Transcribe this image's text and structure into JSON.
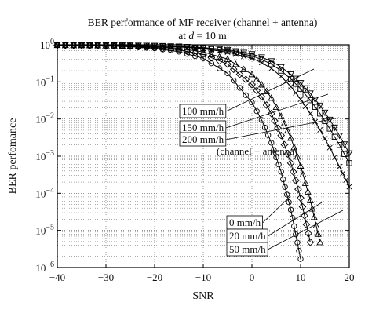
{
  "chart_data": {
    "type": "line",
    "title": "BER performance of MF receiver (channel + antenna)",
    "subtitle_prefix": "at ",
    "subtitle_var": "d",
    "subtitle_suffix": " = 10 m",
    "xlabel": "SNR",
    "ylabel": "BER perfomance",
    "xlim": [
      -40,
      20
    ],
    "ylim": [
      1e-06,
      1
    ],
    "yscale": "log",
    "grid": true,
    "x_ticks": [
      -40,
      -30,
      -20,
      -10,
      0,
      10,
      20
    ],
    "x_tick_labels": [
      "−40",
      "−30",
      "−20",
      "−10",
      "0",
      "10",
      "20"
    ],
    "y_ticks": [
      1e-06,
      1e-05,
      0.0001,
      0.001,
      0.01,
      0.1,
      1
    ],
    "y_tick_labels": [
      {
        "base": "10",
        "exp": "−6"
      },
      {
        "base": "10",
        "exp": "−5"
      },
      {
        "base": "10",
        "exp": "−4"
      },
      {
        "base": "10",
        "exp": "−3"
      },
      {
        "base": "10",
        "exp": "−2"
      },
      {
        "base": "10",
        "exp": "−1"
      },
      {
        "base": "10",
        "exp": "0"
      }
    ],
    "x": [
      -40,
      -35,
      -30,
      -25,
      -20,
      -15,
      -10,
      -5,
      0,
      2,
      4,
      6,
      8,
      10,
      12,
      14,
      16,
      18,
      20
    ],
    "series": [
      {
        "group": "channel",
        "marker": "circle",
        "values": [
          0.97,
          0.955,
          0.93,
          0.885,
          0.8,
          0.65,
          0.43,
          0.17,
          0.028,
          0.0094,
          0.0023,
          0.00038,
          3.6e-05,
          1.7e-06,
          null,
          null,
          null,
          null,
          null
        ]
      },
      {
        "group": "channel",
        "marker": "diamond",
        "values": [
          0.975,
          0.963,
          0.945,
          0.91,
          0.845,
          0.73,
          0.55,
          0.3,
          0.085,
          0.04,
          0.014,
          0.0036,
          0.00065,
          7.5e-05,
          4.8e-06,
          null,
          null,
          null,
          null
        ]
      },
      {
        "group": "channel",
        "marker": "triangle",
        "values": [
          0.98,
          0.97,
          0.955,
          0.93,
          0.89,
          0.8,
          0.64,
          0.41,
          0.16,
          0.085,
          0.037,
          0.012,
          0.0031,
          0.00055,
          6.5e-05,
          4.8e-06,
          2.2e-07,
          null,
          null
        ]
      },
      {
        "group": "channel+antenna",
        "marker": "x",
        "values": [
          0.98,
          0.975,
          0.965,
          0.95,
          0.92,
          0.87,
          0.78,
          0.63,
          0.43,
          0.33,
          0.23,
          0.14,
          0.075,
          0.034,
          0.014,
          0.0051,
          0.0017,
          0.00052,
          0.00015
        ]
      },
      {
        "group": "channel+antenna",
        "marker": "square",
        "values": [
          0.983,
          0.977,
          0.968,
          0.955,
          0.93,
          0.885,
          0.81,
          0.68,
          0.5,
          0.4,
          0.3,
          0.2,
          0.12,
          0.065,
          0.032,
          0.014,
          0.0055,
          0.002,
          0.00065
        ]
      },
      {
        "group": "channel+antenna",
        "marker": "triangle-down",
        "values": [
          0.985,
          0.98,
          0.972,
          0.96,
          0.94,
          0.9,
          0.84,
          0.73,
          0.56,
          0.46,
          0.36,
          0.25,
          0.16,
          0.093,
          0.049,
          0.023,
          0.0096,
          0.0036,
          0.0012
        ]
      }
    ],
    "annotations": {
      "upper_labels": [
        "100 mm/h",
        "150 mm/h",
        "200 mm/h"
      ],
      "upper_caption": "(channel + antenna)",
      "lower_labels": [
        "0 mm/h",
        "20 mm/h",
        "50 mm/h"
      ]
    }
  }
}
